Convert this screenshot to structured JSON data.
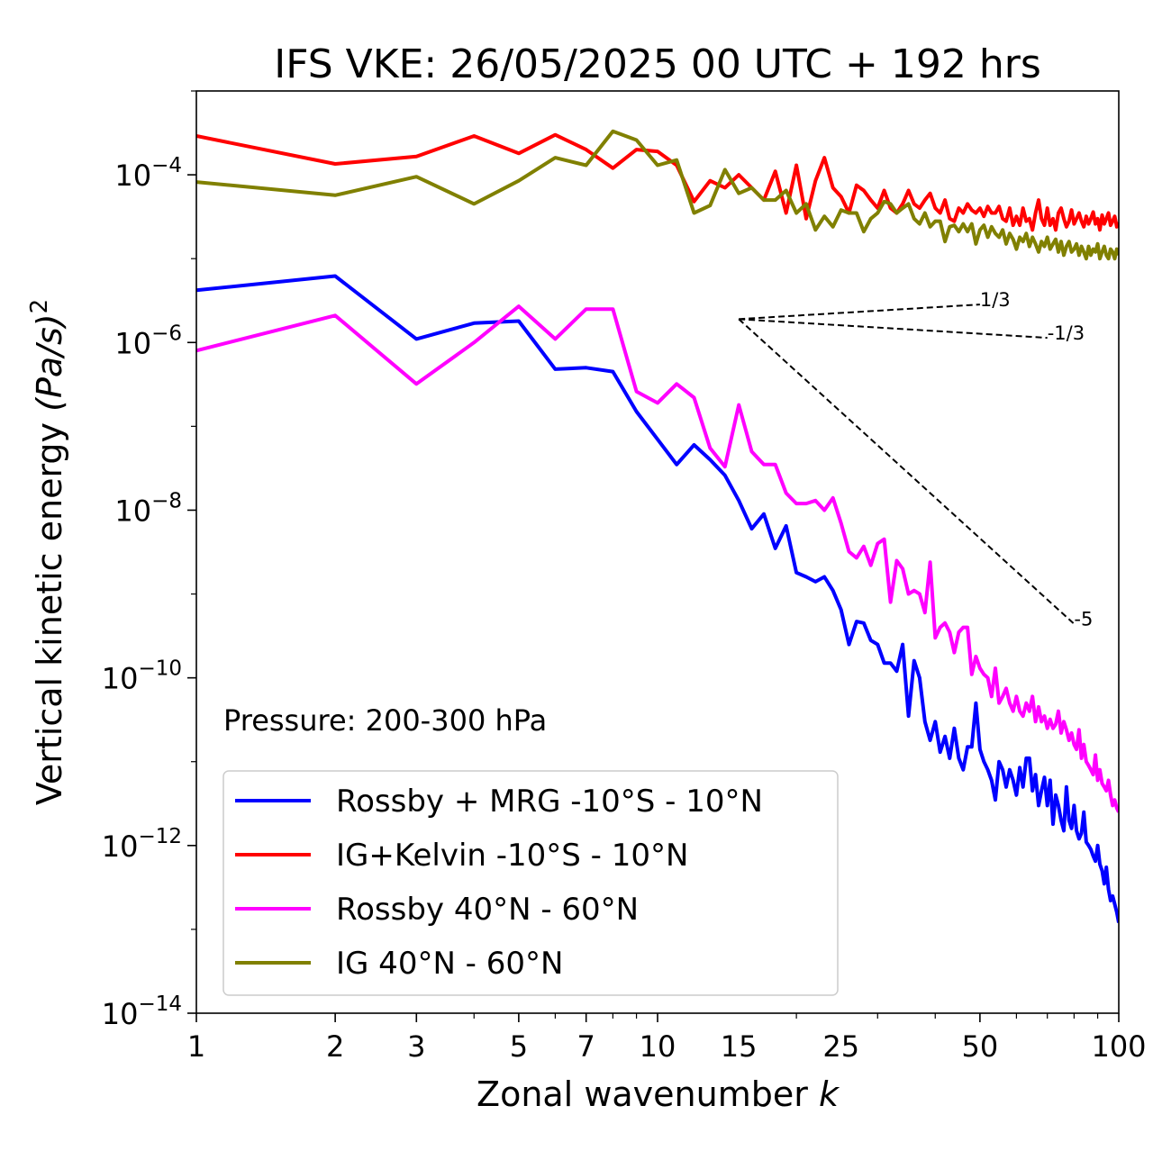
{
  "chart_data": {
    "type": "line",
    "title": "IFS VKE: 26/05/2025 00 UTC + 192 hrs",
    "xlabel": "Zonal wavenumber",
    "xlabel_italic": "k",
    "ylabel": "Vertical kinetic energy",
    "ylabel_unit": "(Pa/s)",
    "ylabel_exponent": "2",
    "xscale": "log",
    "yscale": "log",
    "xlim": [
      1,
      100
    ],
    "ylim": [
      1e-14,
      0.001
    ],
    "x_ticks": [
      1,
      2,
      3,
      5,
      7,
      10,
      15,
      25,
      50,
      100
    ],
    "y_ticks": [
      {
        "value": 1e-14,
        "base": "10",
        "exp": "−14"
      },
      {
        "value": 1e-12,
        "base": "10",
        "exp": "−12"
      },
      {
        "value": 1e-10,
        "base": "10",
        "exp": "−10"
      },
      {
        "value": 1e-08,
        "base": "10",
        "exp": "−8"
      },
      {
        "value": 1e-06,
        "base": "10",
        "exp": "−6"
      },
      {
        "value": 0.0001,
        "base": "10",
        "exp": "−4"
      }
    ],
    "annotation": "Pressure: 200-300 hPa",
    "legend_position": "lower-left",
    "slopes": {
      "origin": [
        15,
        1.9e-06
      ],
      "lines": [
        {
          "label": "1/3",
          "end_x": 50
        },
        {
          "label": "-1/3",
          "end_x": 70
        },
        {
          "label": "-5",
          "end_x": 80
        }
      ]
    },
    "series": [
      {
        "name": "Rossby + MRG -10°S - 10°N",
        "color": "#0000ff",
        "x": [
          1,
          2,
          3,
          4,
          5,
          6,
          7,
          8,
          9,
          10,
          11,
          12,
          13,
          14,
          15,
          16,
          17,
          18,
          19,
          20,
          21,
          22,
          23,
          24,
          25,
          26,
          27,
          28,
          29,
          30,
          31,
          32,
          33,
          34,
          35,
          36,
          37,
          38,
          39,
          40,
          41,
          42,
          43,
          44,
          45,
          46,
          47,
          48,
          49,
          50,
          51,
          52,
          53,
          54,
          55,
          56,
          57,
          58,
          59,
          60,
          61,
          62,
          63,
          64,
          65,
          66,
          67,
          68,
          69,
          70,
          71,
          72,
          73,
          74,
          75,
          76,
          77,
          78,
          79,
          80,
          81,
          82,
          83,
          84,
          85,
          86,
          87,
          88,
          89,
          90,
          91,
          92,
          93,
          94,
          95,
          96,
          97,
          98,
          99,
          100
        ],
        "y": [
          4.2e-06,
          6.2e-06,
          1.1e-06,
          1.7e-06,
          1.8e-06,
          4.8e-07,
          5e-07,
          4.5e-07,
          1.5e-07,
          7e-08,
          3.5e-08,
          6e-08,
          4e-08,
          2.6e-08,
          1.3e-08,
          6e-09,
          9e-09,
          3.5e-09,
          6.5e-09,
          1.8e-09,
          1.6e-09,
          1.4e-09,
          1.6e-09,
          1.1e-09,
          6.5e-10,
          2.5e-10,
          4.7e-10,
          4.5e-10,
          2.8e-10,
          2.5e-10,
          1.5e-10,
          1.5e-10,
          1.2e-10,
          2.5e-10,
          3.5e-11,
          1.6e-10,
          1e-10,
          3e-11,
          1.8e-11,
          3e-11,
          1.3e-11,
          2e-11,
          1.1e-11,
          2.5e-11,
          1.1e-11,
          8e-12,
          1.5e-11,
          1.5e-11,
          5e-11,
          1.4e-11,
          1e-11,
          8e-12,
          6e-12,
          3.5e-12,
          1e-11,
          8e-12,
          5e-12,
          8e-12,
          6e-12,
          4e-12,
          8.5e-12,
          5e-12,
          1.1e-11,
          1.1e-11,
          4.5e-12,
          7e-12,
          3e-12,
          4.5e-12,
          6.5e-12,
          3e-12,
          6e-12,
          1.8e-12,
          4e-12,
          3e-12,
          2e-12,
          1.5e-12,
          5e-12,
          2e-12,
          1.6e-12,
          3e-12,
          1.5e-12,
          1.2e-12,
          1.4e-12,
          2.5e-12,
          1.1e-12,
          1e-12,
          9e-13,
          7.5e-13,
          6.5e-13,
          1e-12,
          6e-13,
          5e-13,
          3.5e-13,
          5.5e-13,
          3e-13,
          2.2e-13,
          2.5e-13,
          2e-13,
          1.6e-13,
          1.2e-13
        ]
      },
      {
        "name": "IG+Kelvin -10°S - 10°N",
        "color": "#ff0000",
        "x": [
          1,
          2,
          3,
          4,
          5,
          6,
          7,
          8,
          9,
          10,
          11,
          12,
          13,
          14,
          15,
          16,
          17,
          18,
          19,
          20,
          21,
          22,
          23,
          24,
          25,
          26,
          27,
          28,
          29,
          30,
          31,
          32,
          33,
          34,
          35,
          36,
          37,
          38,
          39,
          40,
          41,
          42,
          43,
          44,
          45,
          46,
          47,
          48,
          49,
          50,
          51,
          52,
          53,
          54,
          55,
          56,
          57,
          58,
          59,
          60,
          61,
          62,
          63,
          64,
          65,
          66,
          67,
          68,
          69,
          70,
          71,
          72,
          73,
          74,
          75,
          76,
          77,
          78,
          79,
          80,
          81,
          82,
          83,
          84,
          85,
          86,
          87,
          88,
          89,
          90,
          91,
          92,
          93,
          94,
          95,
          96,
          97,
          98,
          99,
          100
        ],
        "y": [
          0.00029,
          0.000135,
          0.000165,
          0.00029,
          0.00018,
          0.0003,
          0.0002,
          0.00012,
          0.0002,
          0.00019,
          0.00013,
          4.8e-05,
          8.5e-05,
          7e-05,
          0.0001,
          7e-05,
          5e-05,
          0.00011,
          3.5e-05,
          0.00013,
          3e-05,
          8.5e-05,
          0.00016,
          7e-05,
          5.5e-05,
          3.5e-05,
          7.5e-05,
          6.5e-05,
          5e-05,
          4e-05,
          6.5e-05,
          4e-05,
          3.5e-05,
          4.5e-05,
          6.5e-05,
          4.5e-05,
          4e-05,
          5e-05,
          6e-05,
          4e-05,
          3.5e-05,
          5e-05,
          3e-05,
          2.8e-05,
          4e-05,
          3.5e-05,
          4.5e-05,
          3.8e-05,
          3.5e-05,
          4e-05,
          3.2e-05,
          4.2e-05,
          3.5e-05,
          3.5e-05,
          4.2e-05,
          3e-05,
          2.8e-05,
          4e-05,
          2.5e-05,
          3.2e-05,
          2.5e-05,
          4e-05,
          2.8e-05,
          3e-05,
          2.2e-05,
          3.5e-05,
          5e-05,
          3e-05,
          2.5e-05,
          4e-05,
          2.5e-05,
          3e-05,
          2.2e-05,
          3.5e-05,
          4e-05,
          3e-05,
          2.4e-05,
          2.8e-05,
          3.8e-05,
          2.6e-05,
          3e-05,
          3.5e-05,
          2.8e-05,
          2.4e-05,
          3.2e-05,
          2.6e-05,
          3e-05,
          3.6e-05,
          2.6e-05,
          3e-05,
          2.2e-05,
          3.3e-05,
          2.6e-05,
          3e-05,
          3.5e-05,
          2.5e-05,
          2.8e-05,
          3.2e-05,
          2.4e-05,
          2.7e-05
        ]
      },
      {
        "name": "Rossby 40°N - 60°N",
        "color": "#ff00ff",
        "x": [
          1,
          2,
          3,
          4,
          5,
          6,
          7,
          8,
          9,
          10,
          11,
          12,
          13,
          14,
          15,
          16,
          17,
          18,
          19,
          20,
          21,
          22,
          23,
          24,
          25,
          26,
          27,
          28,
          29,
          30,
          31,
          32,
          33,
          34,
          35,
          36,
          37,
          38,
          39,
          40,
          41,
          42,
          43,
          44,
          45,
          46,
          47,
          48,
          49,
          50,
          51,
          52,
          53,
          54,
          55,
          56,
          57,
          58,
          59,
          60,
          61,
          62,
          63,
          64,
          65,
          66,
          67,
          68,
          69,
          70,
          71,
          72,
          73,
          74,
          75,
          76,
          77,
          78,
          79,
          80,
          81,
          82,
          83,
          84,
          85,
          86,
          87,
          88,
          89,
          90,
          91,
          92,
          93,
          94,
          95,
          96,
          97,
          98,
          99,
          100
        ],
        "y": [
          8e-07,
          2.1e-06,
          3.2e-07,
          1e-06,
          2.7e-06,
          1.1e-06,
          2.5e-06,
          2.5e-06,
          2.6e-07,
          1.9e-07,
          3.2e-07,
          2.2e-07,
          5.5e-08,
          3.3e-08,
          1.8e-07,
          5e-08,
          3.5e-08,
          3.5e-08,
          1.6e-08,
          1.2e-08,
          1.2e-08,
          1.3e-08,
          1e-08,
          1.4e-08,
          7e-09,
          3.2e-09,
          2.7e-09,
          3.7e-09,
          2.2e-09,
          4e-09,
          4.5e-09,
          8e-10,
          2.5e-09,
          2e-09,
          1e-09,
          1.1e-09,
          1e-09,
          6e-10,
          2.4e-09,
          3e-10,
          4e-10,
          4.5e-10,
          3.5e-10,
          2e-10,
          3.5e-10,
          4e-10,
          4e-10,
          1.1e-10,
          1.8e-10,
          1.3e-10,
          1.1e-10,
          1e-10,
          6e-11,
          1.3e-10,
          5e-11,
          6e-11,
          7.5e-11,
          5e-11,
          4e-11,
          6e-11,
          4e-11,
          3.5e-11,
          5e-11,
          4e-11,
          6e-11,
          3e-11,
          4.5e-11,
          3e-11,
          3.5e-11,
          2.5e-11,
          3.2e-11,
          2.5e-11,
          2.8e-11,
          4e-11,
          2.2e-11,
          3e-11,
          2.4e-11,
          1.8e-11,
          2.2e-11,
          1.6e-11,
          1.4e-11,
          2.4e-11,
          1.1e-11,
          1.6e-11,
          1e-11,
          9e-12,
          8e-12,
          7e-12,
          1.2e-11,
          6e-12,
          8e-12,
          5.5e-12,
          5e-12,
          4.5e-12,
          6e-12,
          4e-12,
          3e-12,
          3.5e-12,
          2.8e-12,
          2.5e-12
        ]
      },
      {
        "name": "IG 40°N - 60°N",
        "color": "#808000",
        "x": [
          1,
          2,
          3,
          4,
          5,
          6,
          7,
          8,
          9,
          10,
          11,
          12,
          13,
          14,
          15,
          16,
          17,
          18,
          19,
          20,
          21,
          22,
          23,
          24,
          25,
          26,
          27,
          28,
          29,
          30,
          31,
          32,
          33,
          34,
          35,
          36,
          37,
          38,
          39,
          40,
          41,
          42,
          43,
          44,
          45,
          46,
          47,
          48,
          49,
          50,
          51,
          52,
          53,
          54,
          55,
          56,
          57,
          58,
          59,
          60,
          61,
          62,
          63,
          64,
          65,
          66,
          67,
          68,
          69,
          70,
          71,
          72,
          73,
          74,
          75,
          76,
          77,
          78,
          79,
          80,
          81,
          82,
          83,
          84,
          85,
          86,
          87,
          88,
          89,
          90,
          91,
          92,
          93,
          94,
          95,
          96,
          97,
          98,
          99,
          100
        ],
        "y": [
          8.2e-05,
          5.7e-05,
          9.5e-05,
          4.5e-05,
          8.5e-05,
          0.00016,
          0.00013,
          0.00033,
          0.00026,
          0.00013,
          0.00015,
          3.5e-05,
          4.3e-05,
          0.000115,
          6e-05,
          7e-05,
          5e-05,
          5e-05,
          6.5e-05,
          3.5e-05,
          4.5e-05,
          2.2e-05,
          3.2e-05,
          2.4e-05,
          3.8e-05,
          3.5e-05,
          3.5e-05,
          2.1e-05,
          3e-05,
          3.5e-05,
          4.8e-05,
          4.5e-05,
          3.5e-05,
          4e-05,
          4.5e-05,
          3e-05,
          2.6e-05,
          3.5e-05,
          2.4e-05,
          2.8e-05,
          2.8e-05,
          1.6e-05,
          2.4e-05,
          2.5e-05,
          2.1e-05,
          2.6e-05,
          2.1e-05,
          2.6e-05,
          1.5e-05,
          2.2e-05,
          2.5e-05,
          1.8e-05,
          2.4e-05,
          2e-05,
          1.8e-05,
          2.2e-05,
          1.5e-05,
          2e-05,
          1.7e-05,
          1.3e-05,
          1.8e-05,
          1.6e-05,
          2e-05,
          1.4e-05,
          1.8e-05,
          1.5e-05,
          1.2e-05,
          1.6e-05,
          1.4e-05,
          1.8e-05,
          1.3e-05,
          1.5e-05,
          1.7e-05,
          1.2e-05,
          1.6e-05,
          1.1e-05,
          1.4e-05,
          1.6e-05,
          1.2e-05,
          1.3e-05,
          1.5e-05,
          1.1e-05,
          1.4e-05,
          1.2e-05,
          1e-05,
          1.4e-05,
          1.1e-05,
          1.3e-05,
          1.2e-05,
          1.5e-05,
          1e-05,
          1.2e-05,
          1.4e-05,
          1.1e-05,
          1e-05,
          1.3e-05,
          1.2e-05,
          1e-05,
          1.3e-05,
          1.1e-05
        ]
      }
    ]
  }
}
